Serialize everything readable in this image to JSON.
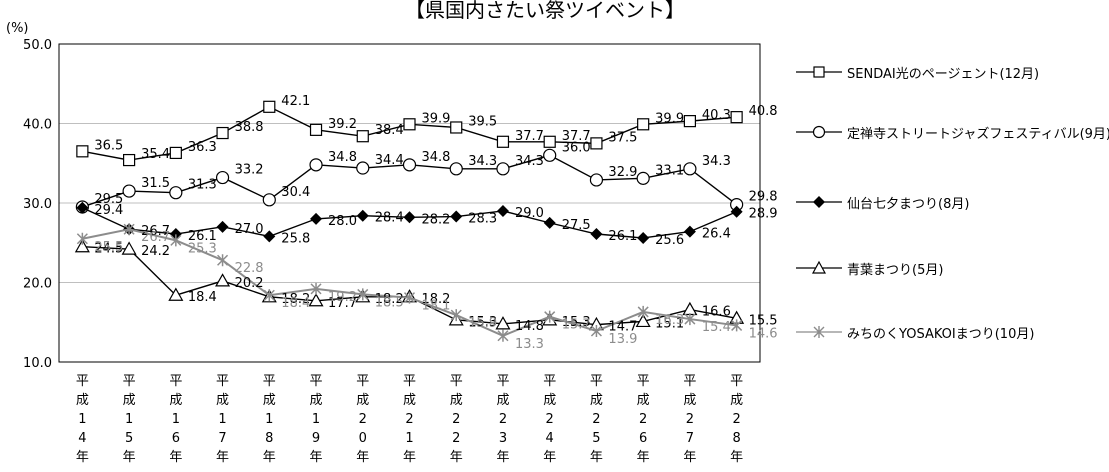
{
  "chart_data": {
    "type": "line",
    "title": "【県国内さたい祭ツイベント】",
    "ylabel": "(%)",
    "ylim": [
      10,
      50
    ],
    "yticks": [
      "10.0",
      "20.0",
      "30.0",
      "40.0",
      "50.0"
    ],
    "categories": [
      "平成14年",
      "平成15年",
      "平成16年",
      "平成17年",
      "平成18年",
      "平成19年",
      "平成20年",
      "平成21年",
      "平成22年",
      "平成23年",
      "平成24年",
      "平成25年",
      "平成26年",
      "平成27年",
      "平成28年"
    ],
    "category_chars": [
      [
        "平",
        "成",
        "1",
        "4",
        "年"
      ],
      [
        "平",
        "成",
        "1",
        "5",
        "年"
      ],
      [
        "平",
        "成",
        "1",
        "6",
        "年"
      ],
      [
        "平",
        "成",
        "1",
        "7",
        "年"
      ],
      [
        "平",
        "成",
        "1",
        "8",
        "年"
      ],
      [
        "平",
        "成",
        "1",
        "9",
        "年"
      ],
      [
        "平",
        "成",
        "2",
        "0",
        "年"
      ],
      [
        "平",
        "成",
        "2",
        "1",
        "年"
      ],
      [
        "平",
        "成",
        "2",
        "2",
        "年"
      ],
      [
        "平",
        "成",
        "2",
        "3",
        "年"
      ],
      [
        "平",
        "成",
        "2",
        "4",
        "年"
      ],
      [
        "平",
        "成",
        "2",
        "5",
        "年"
      ],
      [
        "平",
        "成",
        "2",
        "6",
        "年"
      ],
      [
        "平",
        "成",
        "2",
        "7",
        "年"
      ],
      [
        "平",
        "成",
        "2",
        "8",
        "年"
      ]
    ],
    "grid": true,
    "legend_position": "right",
    "series": [
      {
        "name": "SENDAI光のページェント(12月)",
        "marker": "square-open",
        "color": "#000000",
        "values": [
          36.5,
          35.4,
          36.3,
          38.8,
          42.1,
          39.2,
          38.4,
          39.9,
          39.5,
          37.7,
          37.7,
          37.5,
          39.9,
          40.3,
          40.8
        ]
      },
      {
        "name": "定禅寺ストリートジャズフェスティバル(9月)",
        "marker": "circle-open",
        "color": "#000000",
        "values": [
          29.5,
          31.5,
          31.3,
          33.2,
          30.4,
          34.8,
          34.4,
          34.8,
          34.3,
          34.3,
          36.0,
          32.9,
          33.1,
          34.3,
          29.8
        ]
      },
      {
        "name": "仙台七夕まつり(8月)",
        "marker": "diamond-filled",
        "color": "#000000",
        "values": [
          29.4,
          26.7,
          26.1,
          27.0,
          25.8,
          28.0,
          28.4,
          28.2,
          28.3,
          29.0,
          27.5,
          26.1,
          25.6,
          26.4,
          28.9
        ]
      },
      {
        "name": "青葉まつり(5月)",
        "marker": "triangle-open",
        "color": "#000000",
        "values": [
          24.5,
          24.2,
          18.4,
          20.2,
          18.2,
          17.7,
          18.2,
          18.2,
          15.3,
          14.8,
          15.3,
          14.7,
          15.1,
          16.6,
          15.5
        ]
      },
      {
        "name": "みちのくYOSAKOIまつり(10月)",
        "marker": "asterisk",
        "color": "#8c8c8c",
        "values": [
          25.5,
          26.7,
          25.3,
          22.8,
          18.4,
          19.2,
          18.5,
          18.1,
          15.9,
          13.3,
          15.7,
          13.9,
          16.3,
          15.4,
          14.6
        ]
      }
    ]
  }
}
